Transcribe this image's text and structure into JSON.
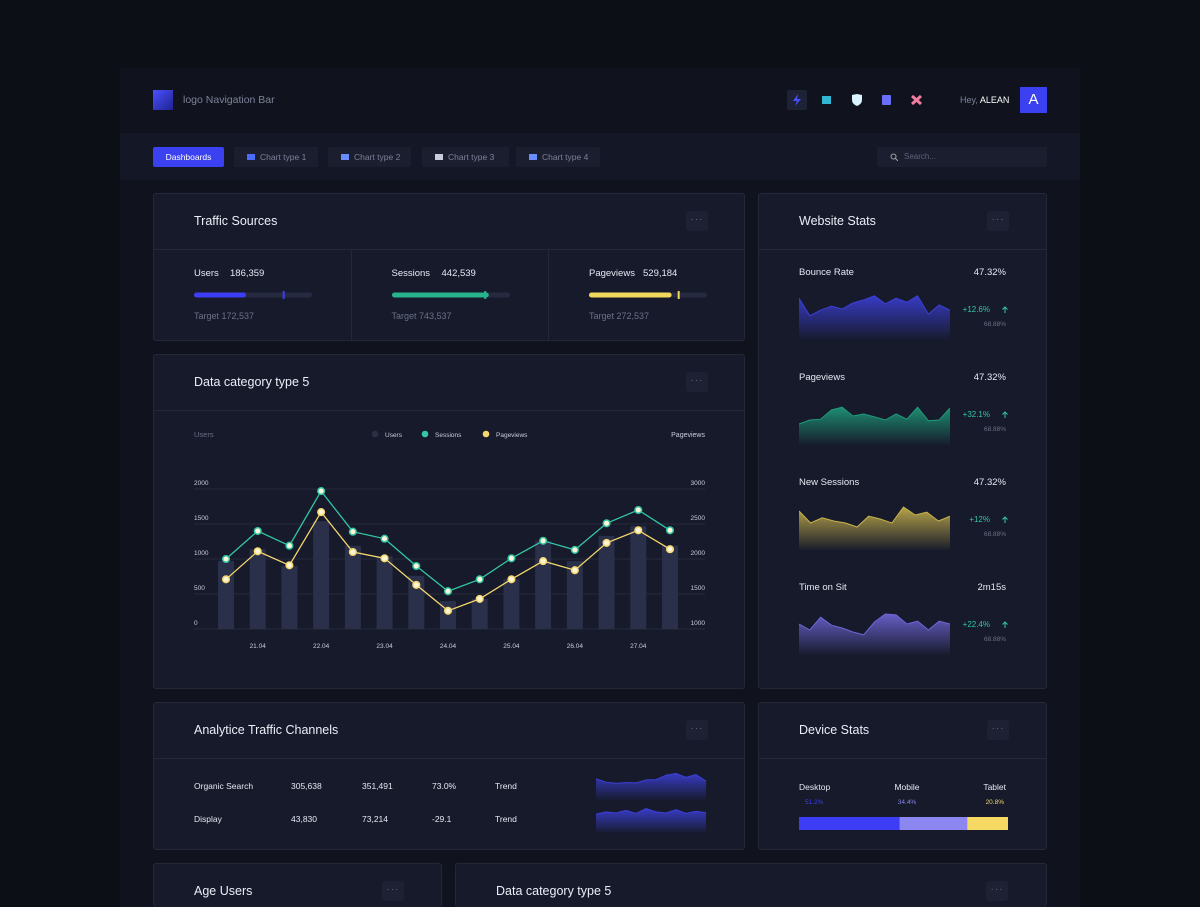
{
  "nav": {
    "logo_text": "logo Navigation Bar",
    "greeting": "Hey,",
    "user_name": "ALEAN",
    "avatar_letter": "A"
  },
  "tabs": [
    "Dashboards",
    "Chart type 1",
    "Chart type 2",
    "Chart type 3",
    "Chart type 4"
  ],
  "search_placeholder": "Search...",
  "traffic_sources": {
    "title": "Traffic Sources",
    "metrics": [
      {
        "label": "Users",
        "value": "186,359",
        "target": "Target 172,537",
        "progress": 44,
        "target_marker": 76,
        "color": "#3d3df5"
      },
      {
        "label": "Sessions",
        "value": "442,539",
        "target": "Target 743,537",
        "progress": 82,
        "target_marker": 79,
        "color": "#27b38c"
      },
      {
        "label": "Pageviews",
        "value": "529,184",
        "target": "Target 272,537",
        "progress": 70,
        "target_marker": 76,
        "color": "#f2d85c"
      }
    ]
  },
  "chart": {
    "type": "bar_line",
    "title": "Data category type 5",
    "y_label": "Users",
    "y2_label": "Pageviews",
    "categories": [
      null,
      "21.04",
      null,
      "22.04",
      null,
      "23.04",
      null,
      "24.04",
      null,
      "25.04",
      null,
      "26.04",
      null,
      "27.04",
      null
    ],
    "series": [
      {
        "name": "Users",
        "type": "bar",
        "color": "#2a2f4a",
        "values": [
          970,
          1140,
          900,
          1540,
          1190,
          1040,
          760,
          400,
          430,
          710,
          1260,
          970,
          1330,
          1470,
          1190
        ]
      },
      {
        "name": "Sessions",
        "type": "line",
        "color": "#34c6a4",
        "values": [
          1000,
          1400,
          1190,
          1970,
          1390,
          1290,
          900,
          540,
          710,
          1010,
          1260,
          1130,
          1510,
          1700,
          1410
        ]
      },
      {
        "name": "Pageviews",
        "type": "line",
        "axis": "y2",
        "color": "#f5d76e",
        "values": [
          1710,
          2110,
          1910,
          2670,
          2100,
          2010,
          1630,
          1260,
          1430,
          1710,
          1970,
          1840,
          2230,
          2410,
          2140
        ]
      }
    ],
    "ylim": [
      0,
      2000
    ],
    "yticks": [
      0,
      500,
      1000,
      1500,
      2000
    ],
    "y2lim": [
      1000,
      3000
    ],
    "y2ticks": [
      1000,
      1500,
      2000,
      2500,
      3000
    ],
    "grid": true
  },
  "website_stats": {
    "title": "Website Stats",
    "items": [
      {
        "label": "Bounce Rate",
        "value": "47.32%",
        "change": "+12.6%",
        "sub": "68.88%",
        "color": "#3c3fd6",
        "trend": [
          82,
          38,
          52,
          62,
          55,
          70,
          78,
          88,
          68,
          82,
          72,
          88,
          42,
          65,
          52
        ]
      },
      {
        "label": "Pageviews",
        "value": "47.32%",
        "change": "+32.1%",
        "sub": "68.88%",
        "color": "#1f9a7a",
        "trend": [
          30,
          40,
          42,
          65,
          72,
          50,
          55,
          48,
          40,
          55,
          42,
          72,
          38,
          40,
          70
        ]
      },
      {
        "label": "New Sessions",
        "value": "47.32%",
        "change": "+12%",
        "sub": "68.88%",
        "color": "#c9b34c",
        "trend": [
          75,
          45,
          58,
          50,
          45,
          35,
          62,
          55,
          45,
          85,
          65,
          72,
          50,
          62
        ]
      },
      {
        "label": "Time on Sit",
        "value": "2m15s",
        "change": "+22.4%",
        "sub": "68.88%",
        "color": "#7066d8",
        "trend": [
          55,
          40,
          72,
          52,
          45,
          35,
          28,
          60,
          80,
          78,
          55,
          62,
          40,
          62,
          55
        ]
      }
    ]
  },
  "channels": {
    "title": "Analytice Traffic Channels",
    "rows": [
      {
        "cells": [
          "Organic Search",
          "305,638",
          "351,491",
          "73.0%",
          "Trend"
        ],
        "trend": [
          55,
          40,
          35,
          38,
          37,
          50,
          52,
          72,
          80,
          62,
          75,
          45
        ]
      },
      {
        "cells": [
          "Display",
          "43,830",
          "73,214",
          "-29.1",
          "Trend"
        ],
        "trend": [
          45,
          55,
          50,
          62,
          48,
          70,
          55,
          50,
          65,
          48,
          58,
          52
        ]
      }
    ]
  },
  "device_stats": {
    "title": "Device Stats",
    "categories": [
      "Desktop",
      "Mobile",
      "Tablet"
    ],
    "values": [
      51.2,
      34.4,
      20.8
    ],
    "value_labels": [
      "51.2%",
      "34.4%",
      "20.8%"
    ],
    "colors": [
      "#3d3df5",
      "#8b86f0",
      "#f5d962"
    ]
  },
  "age_users": {
    "title": "Age Users"
  },
  "bottom_chart": {
    "title": "Data category type 5"
  }
}
